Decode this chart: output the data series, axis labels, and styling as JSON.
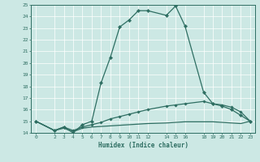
{
  "xlabel": "Humidex (Indice chaleur)",
  "ylabel": "",
  "xlim": [
    -0.5,
    23.5
  ],
  "ylim": [
    14,
    25
  ],
  "yticks": [
    14,
    15,
    16,
    17,
    18,
    19,
    20,
    21,
    22,
    23,
    24,
    25
  ],
  "xticks": [
    0,
    2,
    3,
    4,
    5,
    6,
    7,
    8,
    9,
    10,
    11,
    12,
    14,
    15,
    16,
    18,
    19,
    20,
    21,
    22,
    23
  ],
  "bg_color": "#cce8e4",
  "line_color": "#2e6e62",
  "line1_x": [
    0,
    2,
    3,
    4,
    5,
    6,
    7,
    8,
    9,
    10,
    11,
    12,
    14,
    15,
    16,
    18,
    19,
    20,
    21,
    22,
    23
  ],
  "line1_y": [
    15.0,
    14.2,
    14.5,
    14.0,
    14.7,
    15.0,
    18.3,
    20.5,
    23.1,
    23.7,
    24.5,
    24.5,
    24.1,
    24.9,
    23.2,
    17.5,
    16.5,
    16.3,
    16.0,
    15.5,
    15.0
  ],
  "line2_x": [
    0,
    2,
    3,
    4,
    5,
    6,
    7,
    8,
    9,
    10,
    11,
    12,
    14,
    15,
    16,
    18,
    19,
    20,
    21,
    22,
    23
  ],
  "line2_y": [
    15.0,
    14.2,
    14.5,
    14.2,
    14.5,
    14.7,
    14.9,
    15.2,
    15.4,
    15.6,
    15.8,
    16.0,
    16.3,
    16.4,
    16.5,
    16.7,
    16.5,
    16.4,
    16.2,
    15.8,
    15.0
  ],
  "line3_x": [
    0,
    2,
    3,
    4,
    5,
    6,
    7,
    8,
    9,
    10,
    11,
    12,
    14,
    15,
    16,
    18,
    19,
    20,
    21,
    22,
    23
  ],
  "line3_y": [
    15.0,
    14.2,
    14.4,
    14.1,
    14.4,
    14.5,
    14.55,
    14.6,
    14.65,
    14.7,
    14.75,
    14.8,
    14.85,
    14.9,
    14.95,
    14.95,
    14.95,
    14.9,
    14.85,
    14.8,
    15.0
  ]
}
